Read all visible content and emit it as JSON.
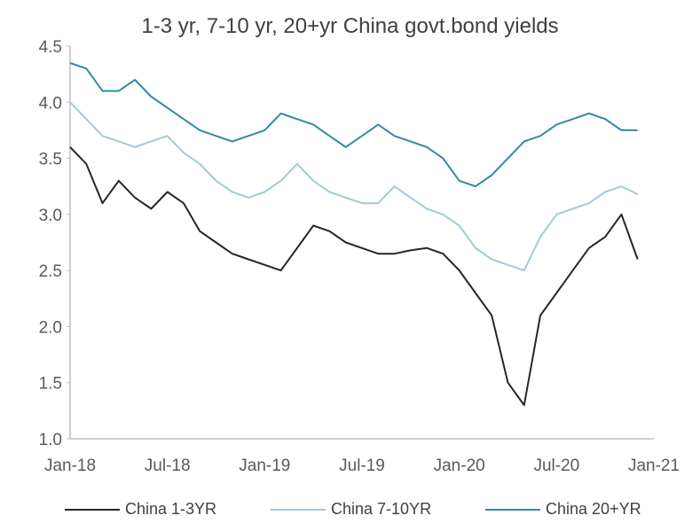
{
  "chart_data": {
    "type": "line",
    "title": "1-3 yr, 7-10 yr, 20+yr China govt.bond yields",
    "xlabel": "",
    "ylabel": "",
    "ylim": [
      1.0,
      4.5
    ],
    "yticks": [
      "1.0",
      "1.5",
      "2.0",
      "2.5",
      "3.0",
      "3.5",
      "4.0",
      "4.5"
    ],
    "xlim": [
      "2018-01",
      "2021-01"
    ],
    "xticks": [
      "Jan-18",
      "Jul-18",
      "Jan-19",
      "Jul-19",
      "Jan-20",
      "Jul-20",
      "Jan-21"
    ],
    "grid": false,
    "legend_position": "bottom",
    "x": [
      "2018-01",
      "2018-02",
      "2018-03",
      "2018-04",
      "2018-05",
      "2018-06",
      "2018-07",
      "2018-08",
      "2018-09",
      "2018-10",
      "2018-11",
      "2018-12",
      "2019-01",
      "2019-02",
      "2019-03",
      "2019-04",
      "2019-05",
      "2019-06",
      "2019-07",
      "2019-08",
      "2019-09",
      "2019-10",
      "2019-11",
      "2019-12",
      "2020-01",
      "2020-02",
      "2020-03",
      "2020-04",
      "2020-05",
      "2020-06",
      "2020-07",
      "2020-08",
      "2020-09",
      "2020-10",
      "2020-11",
      "2020-12"
    ],
    "series": [
      {
        "name": "China 1-3YR",
        "color": "#262626",
        "values": [
          3.6,
          3.45,
          3.1,
          3.3,
          3.15,
          3.05,
          3.2,
          3.1,
          2.85,
          2.75,
          2.65,
          2.6,
          2.55,
          2.5,
          2.7,
          2.9,
          2.85,
          2.75,
          2.7,
          2.65,
          2.65,
          2.68,
          2.7,
          2.65,
          2.5,
          2.3,
          2.1,
          1.5,
          1.3,
          2.1,
          2.3,
          2.5,
          2.7,
          2.8,
          3.0,
          2.6
        ]
      },
      {
        "name": "China 7-10YR",
        "color": "#a6c8d8",
        "values": [
          4.0,
          3.85,
          3.7,
          3.65,
          3.6,
          3.65,
          3.7,
          3.55,
          3.45,
          3.3,
          3.2,
          3.15,
          3.2,
          3.3,
          3.45,
          3.3,
          3.2,
          3.15,
          3.1,
          3.1,
          3.25,
          3.15,
          3.05,
          3.0,
          2.9,
          2.7,
          2.6,
          2.55,
          2.5,
          2.8,
          3.0,
          3.05,
          3.1,
          3.2,
          3.25,
          3.18
        ]
      },
      {
        "name": "China 20+YR",
        "color": "#2f8aa6",
        "values": [
          4.35,
          4.3,
          4.1,
          4.1,
          4.2,
          4.05,
          3.95,
          3.85,
          3.75,
          3.7,
          3.65,
          3.7,
          3.75,
          3.9,
          3.85,
          3.8,
          3.7,
          3.6,
          3.7,
          3.8,
          3.7,
          3.65,
          3.6,
          3.5,
          3.3,
          3.25,
          3.35,
          3.5,
          3.65,
          3.7,
          3.8,
          3.85,
          3.9,
          3.85,
          3.75,
          3.75
        ]
      }
    ]
  }
}
